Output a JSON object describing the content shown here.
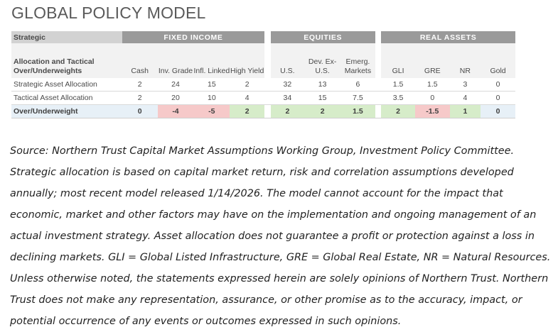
{
  "title": "GLOBAL POLICY MODEL",
  "table": {
    "corner_label_line1": "Strategic",
    "corner_label_rest": "Allocation and Tactical Over/Underweights",
    "groups": {
      "fixed_income": "FIXED INCOME",
      "equities": "EQUITIES",
      "real_assets": "REAL ASSETS"
    },
    "columns": [
      "Cash",
      "Inv. Grade",
      "Infl. Linked",
      "High Yield",
      "U.S.",
      "Dev. Ex-U.S.",
      "Emerg. Markets",
      "GLI",
      "GRE",
      "NR",
      "Gold"
    ],
    "rows": [
      {
        "label": "Strategic Asset Allocation",
        "values": [
          "2",
          "24",
          "15",
          "2",
          "32",
          "13",
          "6",
          "1.5",
          "1.5",
          "3",
          "0"
        ]
      },
      {
        "label": "Tactical Asset Allocation",
        "values": [
          "2",
          "20",
          "10",
          "4",
          "34",
          "15",
          "7.5",
          "3.5",
          "0",
          "4",
          "0"
        ]
      },
      {
        "label": "Over/Underweight",
        "values": [
          "0",
          "-4",
          "-5",
          "2",
          "2",
          "2",
          "1.5",
          "2",
          "-1.5",
          "1",
          "0"
        ]
      }
    ],
    "colors": {
      "positive": "#d6ecc9",
      "negative": "#f6c9c9",
      "neutral": "#e7f0f7",
      "group_header": "#9a9a9a"
    }
  },
  "footnote": "Source: Northern Trust Capital Market Assumptions Working Group, Investment Policy Committee. Strategic allocation is based on capital market return, risk and correlation assumptions developed annually; most recent model released 1/14/2026. The model cannot account for the impact that economic, market and other factors may have on the implementation and ongoing management of an actual investment strategy. Asset allocation does not guarantee a profit or protection against a loss in declining markets. GLI = Global Listed Infrastructure, GRE = Global Real Estate, NR = Natural Resources. Unless otherwise noted, the statements expressed herein are solely opinions of Northern Trust. Northern Trust does not make any representation, assurance, or other promise as to the accuracy, impact, or potential occurrence of any events or outcomes expressed in such opinions."
}
